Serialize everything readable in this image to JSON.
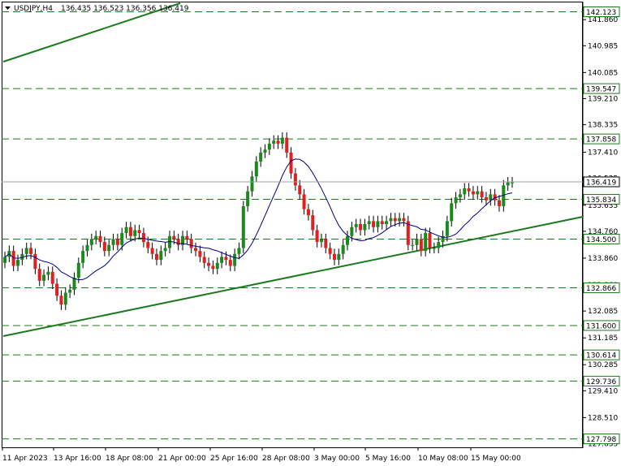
{
  "header": {
    "symbol": "USDJPY,H4",
    "ohlc": "136.435 136.523 136.356 136.419"
  },
  "chart_data": {
    "type": "candlestick",
    "symbol": "USDJPY",
    "timeframe": "H4",
    "ylim": [
      127.65,
      142.3
    ],
    "price_ticks": [
      "141.860",
      "140.985",
      "140.085",
      "139.210",
      "138.335",
      "137.410",
      "136.535",
      "135.635",
      "134.760",
      "133.860",
      "132.960",
      "132.085",
      "131.185",
      "130.285",
      "129.410",
      "128.510",
      "127.635"
    ],
    "time_labels": [
      "11 Apr 2023",
      "13 Apr 16:00",
      "18 Apr 08:00",
      "21 Apr 00:00",
      "25 Apr 16:00",
      "28 Apr 08:00",
      "3 May 00:00",
      "5 May 16:00",
      "10 May 08:00",
      "15 May 00:00"
    ],
    "current_price": "136.419",
    "levels": [
      {
        "label": "142.123",
        "value": 142.123
      },
      {
        "label": "139.547",
        "value": 139.547
      },
      {
        "label": "137.858",
        "value": 137.858
      },
      {
        "label": "135.834",
        "value": 135.834
      },
      {
        "label": "134.500",
        "value": 134.5
      },
      {
        "label": "132.866",
        "value": 132.866
      },
      {
        "label": "131.600",
        "value": 131.6
      },
      {
        "label": "130.614",
        "value": 130.614
      },
      {
        "label": "129.736",
        "value": 129.736
      },
      {
        "label": "127.798",
        "value": 127.798
      }
    ],
    "closes": [
      133.9,
      134.1,
      133.6,
      133.8,
      134.0,
      134.2,
      134.0,
      133.5,
      133.1,
      133.3,
      133.4,
      133.0,
      132.6,
      132.3,
      132.7,
      132.8,
      133.2,
      133.7,
      134.1,
      134.3,
      134.5,
      134.6,
      134.4,
      134.1,
      134.3,
      134.5,
      134.3,
      134.7,
      134.9,
      134.6,
      134.8,
      134.7,
      134.4,
      134.2,
      134.0,
      133.8,
      134.1,
      134.2,
      134.6,
      134.5,
      134.3,
      134.6,
      134.5,
      134.2,
      134.1,
      133.9,
      133.7,
      133.6,
      133.5,
      133.7,
      133.9,
      133.8,
      133.6,
      134.0,
      134.2,
      135.6,
      136.1,
      136.6,
      137.1,
      137.4,
      137.5,
      137.7,
      137.8,
      137.7,
      137.9,
      137.4,
      136.7,
      136.3,
      136.0,
      135.5,
      135.3,
      134.8,
      134.4,
      134.5,
      134.2,
      134.0,
      133.8,
      134.0,
      134.3,
      134.6,
      134.9,
      135.0,
      134.8,
      135.0,
      135.1,
      134.9,
      135.1,
      135.0,
      135.1,
      135.2,
      135.1,
      135.2,
      135.1,
      134.3,
      134.3,
      134.5,
      134.1,
      134.7,
      134.2,
      134.2,
      134.4,
      134.6,
      135.1,
      135.7,
      135.9,
      136.0,
      136.2,
      136.1,
      136.0,
      136.1,
      135.9,
      135.8,
      136.0,
      135.8,
      135.6,
      136.3,
      136.4,
      136.4
    ]
  }
}
